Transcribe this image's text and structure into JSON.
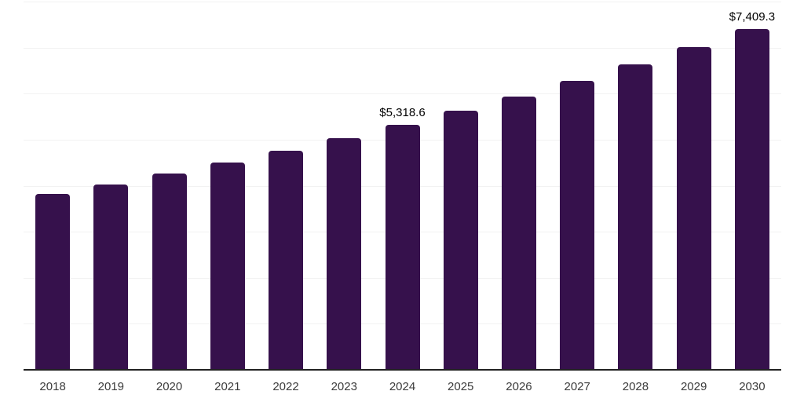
{
  "chart_data": {
    "type": "bar",
    "title": "",
    "xlabel": "",
    "ylabel": "",
    "categories": [
      "2018",
      "2019",
      "2020",
      "2021",
      "2022",
      "2023",
      "2024",
      "2025",
      "2026",
      "2027",
      "2028",
      "2029",
      "2030"
    ],
    "values": [
      3816.9,
      4033.7,
      4262.9,
      4505.1,
      4761.0,
      5031.5,
      5318.6,
      5620.8,
      5940.1,
      6277.6,
      6634.3,
      7011.2,
      7409.3
    ],
    "data_labels": {
      "2024": "$5,318.6",
      "2030": "$7,409.3"
    },
    "ylim": [
      0,
      8000
    ],
    "gridline_interval": 1000,
    "grid": "horizontal",
    "legend": "none",
    "y_axis_labels": "none",
    "colors": {
      "bar": "#36114C",
      "axis_line": "#222222",
      "gridline": "#F2F2F2",
      "tick_label": "#3B3B3B",
      "data_label": "#000000",
      "background": "#FFFFFF"
    }
  }
}
